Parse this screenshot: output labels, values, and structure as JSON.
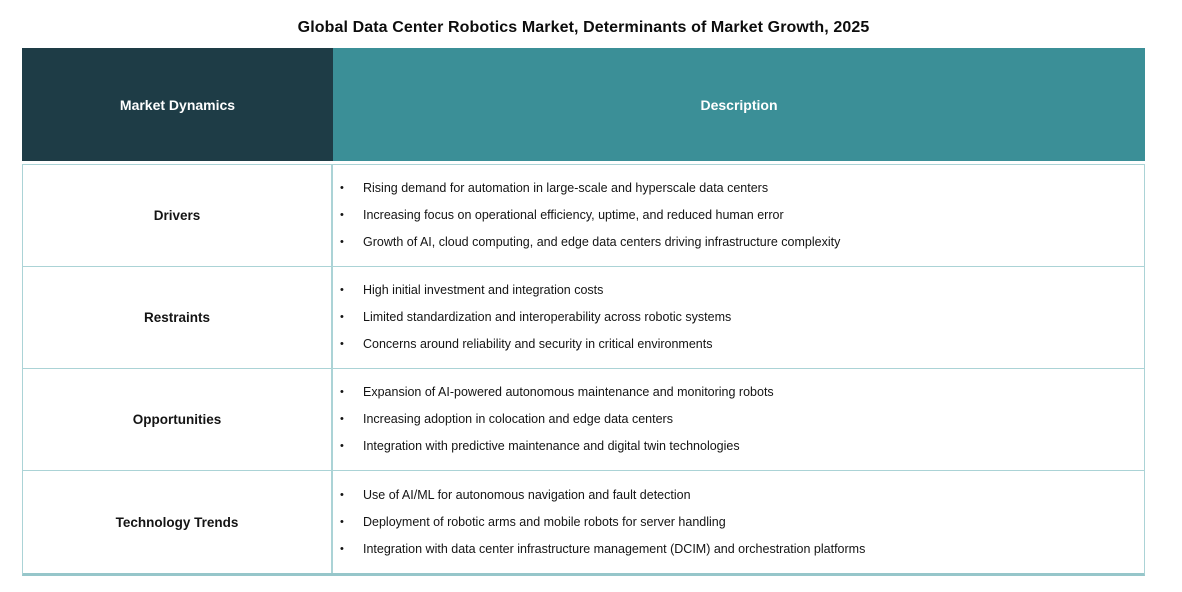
{
  "title": "Global Data Center Robotics Market, Determinants of Market Growth, 2025",
  "chart_data": {
    "type": "table",
    "title": "Global Data Center Robotics Market, Determinants of Market Growth, 2025",
    "columns": [
      "Market Dynamics",
      "Description"
    ],
    "rows": [
      {
        "label": "Drivers",
        "bullets": [
          "Rising demand for automation in large-scale and hyperscale data centers",
          "Increasing focus on operational efficiency, uptime, and reduced human error",
          "Growth of AI, cloud computing, and edge data centers driving infrastructure complexity"
        ]
      },
      {
        "label": "Restraints",
        "bullets": [
          "High initial investment and integration costs",
          "Limited standardization and interoperability across robotic systems",
          "Concerns around reliability and security in critical environments"
        ]
      },
      {
        "label": "Opportunities",
        "bullets": [
          "Expansion of AI-powered autonomous maintenance and monitoring robots",
          "Increasing adoption in colocation and edge data centers",
          "Integration with predictive maintenance and digital twin technologies"
        ]
      },
      {
        "label": "Technology Trends",
        "bullets": [
          "Use of AI/ML for autonomous navigation and fault detection",
          "Deployment of robotic arms and mobile robots for server handling",
          "Integration with data center infrastructure management (DCIM) and orchestration platforms"
        ]
      }
    ],
    "bullet_glyph": "•"
  },
  "colors": {
    "header_dark": "#1e3c46",
    "header_teal": "#3b8f97",
    "border_light_teal": "#abd3d6",
    "bottom_border_teal": "#96c6ca",
    "text": "#141414"
  }
}
